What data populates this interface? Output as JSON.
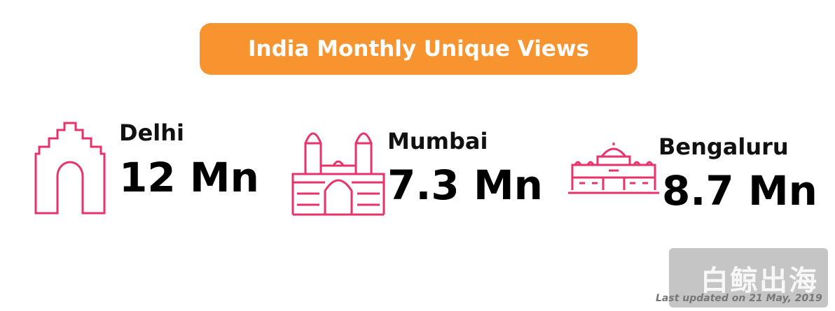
{
  "header": {
    "title": "India Monthly Unique Views"
  },
  "cities": [
    {
      "name": "Delhi",
      "value": "12 Mn"
    },
    {
      "name": "Mumbai",
      "value": "7.3 Mn"
    },
    {
      "name": "Bengaluru",
      "value": "8.7 Mn"
    }
  ],
  "footer": {
    "updated": "Last updated on 21 May, 2019"
  },
  "watermark": {
    "text": "白鲸出海"
  }
}
